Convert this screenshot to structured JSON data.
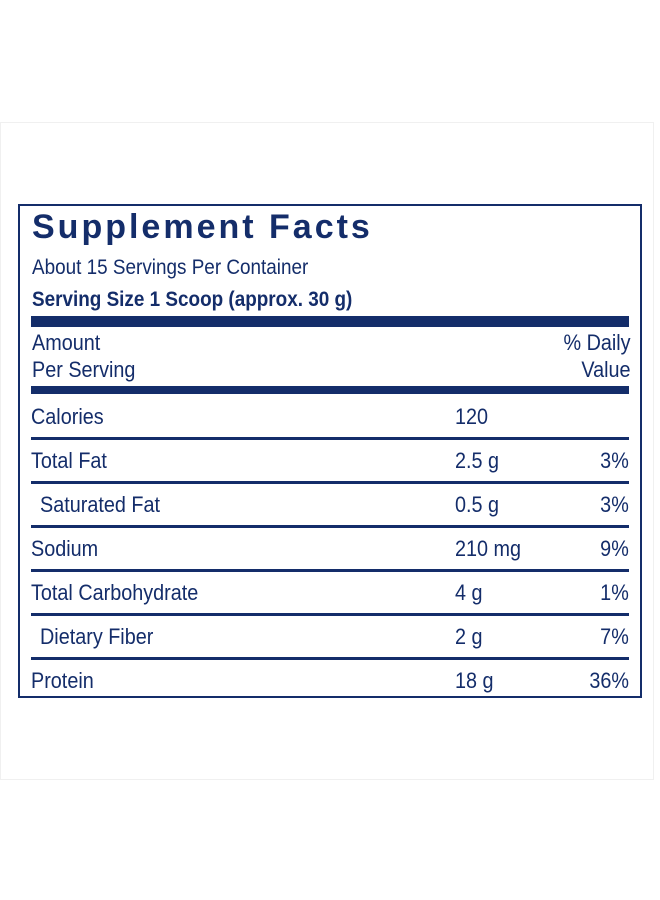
{
  "title": "Supplement Facts",
  "servings_per_container": "About 15 Servings Per Container",
  "serving_size": "Serving Size 1 Scoop (approx. 30 g)",
  "header": {
    "amount_line1": "Amount",
    "amount_line2": "Per Serving",
    "dv_line1": "% Daily",
    "dv_line2": "Value"
  },
  "rows": [
    {
      "name": "Calories",
      "amount": "120",
      "dv": ""
    },
    {
      "name": "Total Fat",
      "amount": "2.5 g",
      "dv": "3%"
    },
    {
      "name": "Saturated Fat",
      "amount": "0.5 g",
      "dv": "3%"
    },
    {
      "name": "Sodium",
      "amount": "210 mg",
      "dv": "9%"
    },
    {
      "name": "Total Carbohydrate",
      "amount": "4 g",
      "dv": "1%"
    },
    {
      "name": "Dietary Fiber",
      "amount": "2 g",
      "dv": "7%"
    },
    {
      "name": "Protein",
      "amount": "18 g",
      "dv": "36%"
    }
  ],
  "colors": {
    "ink": "#142d6a"
  }
}
